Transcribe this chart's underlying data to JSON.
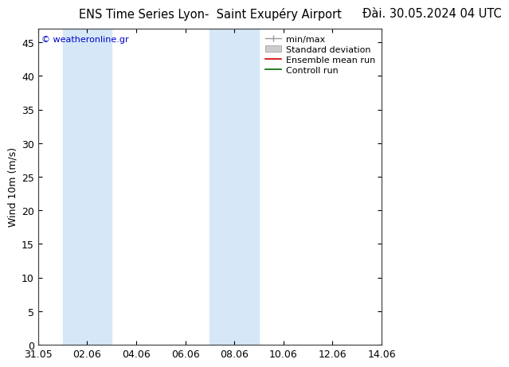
{
  "title_left": "ENS Time Series Lyon-  Saint Exupéry Airport",
  "title_right": "Đài. 30.05.2024 04 UTC",
  "ylabel": "Wind 10m (m/s)",
  "ylim": [
    0,
    47
  ],
  "yticks": [
    0,
    5,
    10,
    15,
    20,
    25,
    30,
    35,
    40,
    45
  ],
  "xlim": [
    0,
    14
  ],
  "xtick_labels": [
    "31.05",
    "02.06",
    "04.06",
    "06.06",
    "08.06",
    "10.06",
    "12.06",
    "14.06"
  ],
  "xtick_positions": [
    0,
    2,
    4,
    6,
    8,
    10,
    12,
    14
  ],
  "blue_bands": [
    {
      "start": 1,
      "end": 3
    },
    {
      "start": 7,
      "end": 9
    }
  ],
  "band_color": "#d6e8f7",
  "watermark": "© weatheronline.gr",
  "watermark_color": "#0000cc",
  "bg_color": "#ffffff",
  "spine_color": "#444444",
  "title_fontsize": 10.5,
  "ylabel_fontsize": 9,
  "tick_fontsize": 9,
  "legend_fontsize": 8
}
